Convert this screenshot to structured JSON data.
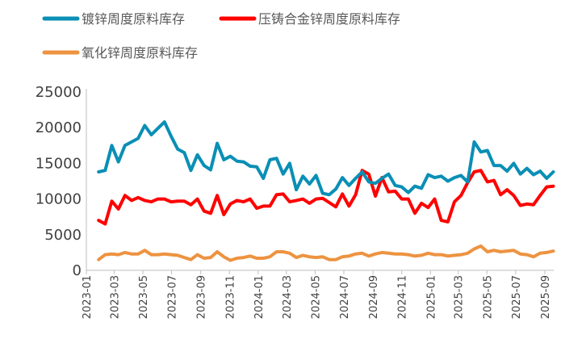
{
  "chart_data": {
    "type": "line",
    "title": "",
    "xlabel": "",
    "ylabel": "",
    "ylim": [
      0,
      25000
    ],
    "yticks": [
      0,
      5000,
      10000,
      15000,
      20000,
      25000
    ],
    "xticks": [
      "2023-01",
      "2023-03",
      "2023-05",
      "2023-07",
      "2023-09",
      "2023-11",
      "2024-01",
      "2024-03",
      "2024-05",
      "2024-07",
      "2024-09",
      "2024-11",
      "2025-01",
      "2025-03",
      "2025-05",
      "2025-07",
      "2025-09"
    ],
    "grid": false,
    "legend_position": "top",
    "x": [
      "2023-01-27",
      "2023-02-10",
      "2023-02-24",
      "2023-03-10",
      "2023-03-24",
      "2023-04-07",
      "2023-04-21",
      "2023-05-05",
      "2023-05-19",
      "2023-06-02",
      "2023-06-16",
      "2023-06-30",
      "2023-07-14",
      "2023-07-28",
      "2023-08-11",
      "2023-08-25",
      "2023-09-08",
      "2023-09-22",
      "2023-10-06",
      "2023-10-20",
      "2023-11-03",
      "2023-11-17",
      "2023-12-01",
      "2023-12-15",
      "2023-12-29",
      "2024-01-12",
      "2024-01-26",
      "2024-02-09",
      "2024-02-23",
      "2024-03-08",
      "2024-03-22",
      "2024-04-05",
      "2024-04-19",
      "2024-05-03",
      "2024-05-17",
      "2024-05-31",
      "2024-06-14",
      "2024-06-28",
      "2024-07-12",
      "2024-07-26",
      "2024-08-09",
      "2024-08-23",
      "2024-09-06",
      "2024-09-20",
      "2024-10-04",
      "2024-10-18",
      "2024-11-01",
      "2024-11-15",
      "2024-11-29",
      "2024-12-13",
      "2024-12-27",
      "2025-01-10",
      "2025-01-24",
      "2025-02-07",
      "2025-02-21",
      "2025-03-07",
      "2025-03-21",
      "2025-04-04",
      "2025-04-18",
      "2025-05-02",
      "2025-05-16",
      "2025-05-30",
      "2025-06-13",
      "2025-06-27",
      "2025-07-11",
      "2025-07-25",
      "2025-08-08",
      "2025-08-22",
      "2025-09-05",
      "2025-09-19"
    ],
    "series": [
      {
        "name": "镀锌周度原料库存",
        "color": "#0a8fb5",
        "values": [
          13800,
          14000,
          17500,
          15200,
          17500,
          18000,
          18500,
          20300,
          19000,
          19900,
          20800,
          18800,
          17000,
          16500,
          14000,
          16200,
          14700,
          14100,
          17800,
          15500,
          16000,
          15300,
          15200,
          14600,
          14500,
          12900,
          15500,
          15700,
          13500,
          15000,
          11300,
          13200,
          12100,
          13300,
          10800,
          10600,
          11400,
          13000,
          11900,
          12900,
          13800,
          12400,
          12200,
          12900,
          13500,
          11900,
          11700,
          10900,
          11800,
          11500,
          13400,
          13000,
          13200,
          12500,
          13000,
          13300,
          12400,
          18000,
          16600,
          16800,
          14700,
          14700,
          13900,
          15000,
          13500,
          14300,
          13400,
          13900,
          12900,
          13800
        ]
      },
      {
        "name": "压铸合金锌周度原料库存",
        "color": "#ff0000",
        "values": [
          7000,
          6500,
          9700,
          8600,
          10500,
          9800,
          10200,
          9800,
          9600,
          10000,
          10000,
          9600,
          9700,
          9700,
          9200,
          10000,
          8300,
          8000,
          10500,
          7800,
          9300,
          9800,
          9600,
          10000,
          8700,
          9000,
          9000,
          10600,
          10700,
          9600,
          9800,
          10000,
          9400,
          10000,
          10100,
          9500,
          8900,
          10700,
          9000,
          10600,
          14000,
          13500,
          10400,
          13000,
          11000,
          11100,
          10000,
          10000,
          8000,
          9400,
          8800,
          10000,
          7000,
          6800,
          9600,
          10500,
          12300,
          13800,
          14000,
          12400,
          12600,
          10600,
          11300,
          10500,
          9100,
          9300,
          9200,
          10500,
          11700,
          11800
        ]
      },
      {
        "name": "氧化锌周度原料库存",
        "color": "#ed9340",
        "values": [
          1500,
          2200,
          2300,
          2200,
          2500,
          2300,
          2300,
          2800,
          2200,
          2200,
          2300,
          2200,
          2100,
          1800,
          1500,
          2200,
          1700,
          1800,
          2600,
          1900,
          1400,
          1700,
          1800,
          2000,
          1700,
          1700,
          1900,
          2600,
          2600,
          2400,
          1800,
          2100,
          1900,
          1800,
          1900,
          1500,
          1500,
          1900,
          2000,
          2300,
          2400,
          2000,
          2300,
          2500,
          2400,
          2300,
          2300,
          2200,
          2000,
          2100,
          2400,
          2200,
          2200,
          2000,
          2100,
          2200,
          2400,
          3000,
          3400,
          2600,
          2800,
          2600,
          2700,
          2800,
          2300,
          2200,
          1900,
          2400,
          2500,
          2700
        ]
      }
    ]
  }
}
